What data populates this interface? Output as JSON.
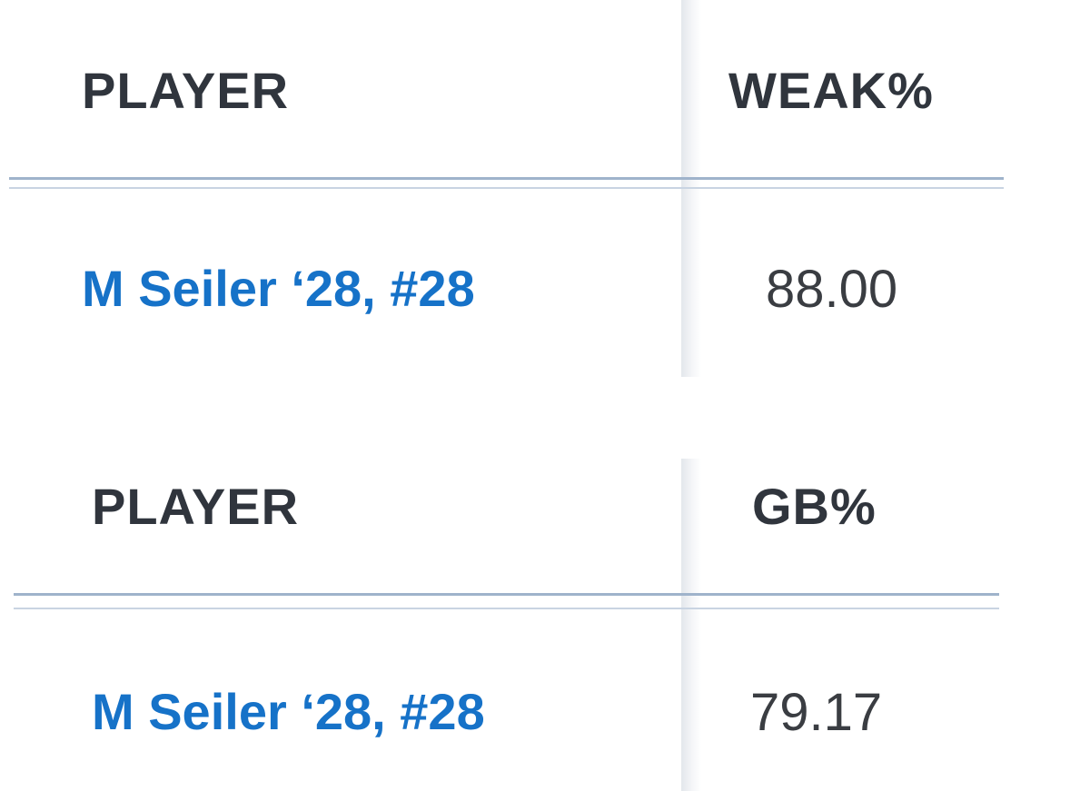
{
  "tables": [
    {
      "headers": [
        "PLAYER",
        "WEAK%"
      ],
      "rows": [
        [
          "M Seiler ‘28, #28",
          "88.00"
        ]
      ]
    },
    {
      "headers": [
        "PLAYER",
        "GB%"
      ],
      "rows": [
        [
          "M Seiler ‘28, #28",
          "79.17"
        ]
      ]
    }
  ]
}
